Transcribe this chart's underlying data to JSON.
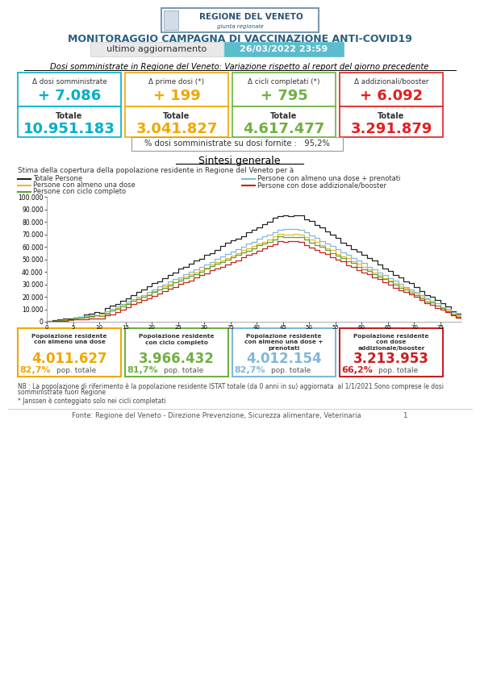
{
  "title_main": "MONITORAGGIO CAMPAGNA DI VACCINAZIONE ANTI-COVID19",
  "update_label": "ultimo aggiornamento",
  "update_value": "26/03/2022 23:59",
  "section_title": "Dosi somministrate in Regione del Veneto: Variazione rispetto al report del giorno precedente",
  "boxes": [
    {
      "delta_label": "Δ dosi somministrate",
      "delta_value": "+ 7.086",
      "totale_label": "Totale",
      "totale_value": "10.951.183",
      "color": "#00b0c8"
    },
    {
      "delta_label": "Δ prime dosi (*)",
      "delta_value": "+ 199",
      "totale_label": "Totale",
      "totale_value": "3.041.827",
      "color": "#f0a800"
    },
    {
      "delta_label": "Δ cicli completati (*)",
      "delta_value": "+ 795",
      "totale_label": "Totale",
      "totale_value": "4.617.477",
      "color": "#70b040"
    },
    {
      "delta_label": "Δ addizionali/booster",
      "delta_value": "+ 6.092",
      "totale_label": "Totale",
      "totale_value": "3.291.879",
      "color": "#e02020"
    }
  ],
  "pct_text": "% dosi somministrate su dosi fornite :   95,2%",
  "sintesi_title": "Sintesi generale",
  "chart_subtitle": "Stima della copertura della popolazione residente in Regione del Veneto per à",
  "legend_items": [
    {
      "label": "Totale Persone",
      "color": "#222222",
      "col": 0,
      "row": 0
    },
    {
      "label": "Persone con almeno una dose + prenotati",
      "color": "#80b8d8",
      "col": 1,
      "row": 0
    },
    {
      "label": "Persone con almeno una dose",
      "color": "#e8b830",
      "col": 0,
      "row": 1
    },
    {
      "label": "Persone con dose addizionale/booster",
      "color": "#c82020",
      "col": 1,
      "row": 1
    },
    {
      "label": "Persone con ciclo completo",
      "color": "#60a030",
      "col": 0,
      "row": 2
    }
  ],
  "ytick_labels": [
    "0",
    "10.000",
    "20.000",
    "30.000",
    "40.000",
    "50.000",
    "60.000",
    "70.000",
    "80.000",
    "90.000",
    "100.000"
  ],
  "bottom_boxes": [
    {
      "main": "4.011.627",
      "pct": "82,7%",
      "label": "Popolazione residente\ncon almeno una dose",
      "color": "#f0a800"
    },
    {
      "main": "3.966.432",
      "pct": "81,7%",
      "label": "Popolazione residente\ncon ciclo completo",
      "color": "#70b040"
    },
    {
      "main": "4.012.154",
      "pct": "82,7%",
      "label": "Popolazione residente\ncon almeno una dose +\nprenotati",
      "color": "#80b8d8"
    },
    {
      "main": "3.213.953",
      "pct": "66,2%",
      "label": "Popolazione residente\ncon dose\naddizionale/booster",
      "color": "#c82020"
    }
  ],
  "note1": "NB : La popolazione di riferimento è la popolazione residente ISTAT totale (da 0 anni in su) aggiornata  al 1/1/2021.Sono comprese le dosi",
  "note1b": "somministrate fuori Regione",
  "note2": "* Janssen è conteggiato solo nei cicli completati",
  "footer": "Fonte: Regione del Veneto - Direzione Prevenzione, Sicurezza alimentare, Veterinaria                    1",
  "bg_color": "#ffffff",
  "teal_color": "#5bbccc",
  "logo_border": "#7a9ab0",
  "logo_text": "#2a5070"
}
